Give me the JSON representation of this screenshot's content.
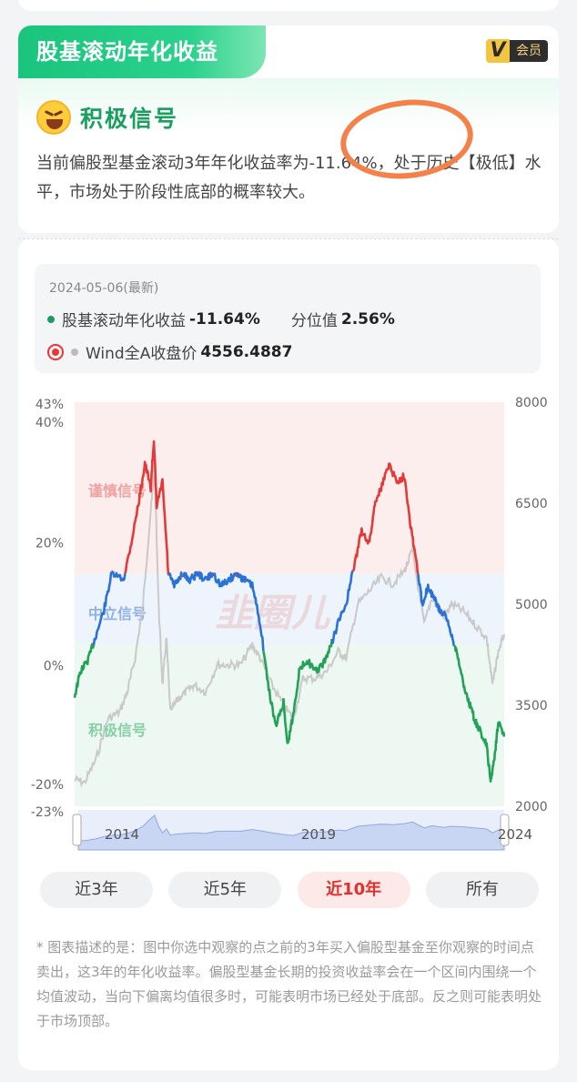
{
  "header": {
    "title": "股基滚动年化收益",
    "vip_letter": "V",
    "vip_label": "会员"
  },
  "signal": {
    "title": "积极信号"
  },
  "description": "当前偏股型基金滚动3年年化收益率为-11.64%，处于历史【极低】水平，市场处于阶段性底部的概率较大。",
  "info": {
    "date": "2024-05-06(最新)",
    "series1_label": "股基滚动年化收益",
    "series1_value": "-11.64%",
    "percentile_label": "分位值",
    "percentile_value": "2.56%",
    "series2_label": "Wind全A收盘价",
    "series2_value": "4556.4887"
  },
  "chart_data": {
    "type": "line",
    "x_range": [
      2013.35,
      2024.35
    ],
    "x_ticks": [
      "2014",
      "2019",
      "2024"
    ],
    "y_left_ticks": [
      "43%",
      "40%",
      "20%",
      "0%",
      "-20%",
      "-23%"
    ],
    "y_left_range": [
      -23,
      43
    ],
    "y_right_ticks": [
      "8000",
      "6500",
      "5000",
      "3500",
      "2000"
    ],
    "y_right_range": [
      2000,
      8000
    ],
    "zones": [
      {
        "name": "谨慎信号",
        "from": 15,
        "to": 43,
        "color": "#fdeeee"
      },
      {
        "name": "中立信号",
        "from": 3.5,
        "to": 15,
        "color": "#eef4fc"
      },
      {
        "name": "积极信号",
        "from": -23,
        "to": 3.5,
        "color": "#ecf8f1"
      }
    ],
    "watermark": "韭圈儿",
    "series": [
      {
        "name": "股基滚动年化收益",
        "axis": "left",
        "colors": {
          "high": "#e23a3a",
          "mid": "#2a72d6",
          "low": "#23a257"
        },
        "x": [
          2013.35,
          2013.5,
          2013.7,
          2013.9,
          2014.1,
          2014.3,
          2014.6,
          2014.8,
          2015.0,
          2015.15,
          2015.3,
          2015.38,
          2015.45,
          2015.6,
          2015.75,
          2015.9,
          2016.1,
          2016.3,
          2016.5,
          2016.7,
          2016.9,
          2017.1,
          2017.3,
          2017.5,
          2017.7,
          2017.9,
          2018.1,
          2018.3,
          2018.5,
          2018.7,
          2018.8,
          2018.95,
          2019.1,
          2019.3,
          2019.5,
          2019.7,
          2019.9,
          2020.1,
          2020.3,
          2020.5,
          2020.7,
          2020.9,
          2021.05,
          2021.2,
          2021.4,
          2021.6,
          2021.8,
          2021.95,
          2022.1,
          2022.25,
          2022.4,
          2022.55,
          2022.7,
          2022.85,
          2023.0,
          2023.15,
          2023.3,
          2023.45,
          2023.6,
          2023.75,
          2023.9,
          2024.0,
          2024.1,
          2024.2,
          2024.35
        ],
        "y": [
          -5,
          -1,
          1,
          5,
          9,
          15,
          14,
          20,
          27,
          33,
          29,
          37,
          26,
          30,
          15,
          13,
          15,
          14,
          15,
          14,
          15,
          13,
          14,
          15,
          14,
          13,
          7,
          -3,
          -10,
          -6,
          -13,
          -8,
          -1,
          1,
          -1,
          0,
          3,
          7,
          10,
          16,
          22,
          20,
          27,
          29,
          33,
          30,
          31,
          23,
          17,
          10,
          13,
          11,
          9,
          8,
          5,
          2,
          -3,
          -6,
          -9,
          -11,
          -13,
          -19,
          -15,
          -9,
          -11.64
        ]
      },
      {
        "name": "Wind全A收盘价",
        "axis": "right",
        "color": "#c9c9c9",
        "x": [
          2013.35,
          2013.6,
          2013.9,
          2014.2,
          2014.5,
          2014.7,
          2014.9,
          2015.1,
          2015.3,
          2015.4,
          2015.5,
          2015.6,
          2015.7,
          2015.8,
          2016.0,
          2016.2,
          2016.4,
          2016.7,
          2017.0,
          2017.3,
          2017.6,
          2017.9,
          2018.1,
          2018.4,
          2018.7,
          2018.95,
          2019.2,
          2019.5,
          2019.8,
          2020.1,
          2020.3,
          2020.6,
          2020.9,
          2021.2,
          2021.5,
          2021.8,
          2022.0,
          2022.3,
          2022.5,
          2022.8,
          2023.0,
          2023.3,
          2023.6,
          2023.9,
          2024.05,
          2024.2,
          2024.35
        ],
        "y": [
          2400,
          2350,
          2700,
          3300,
          3400,
          3700,
          4200,
          5000,
          6400,
          7000,
          5000,
          3800,
          4500,
          3400,
          3600,
          3700,
          3800,
          3700,
          4100,
          4100,
          4100,
          4400,
          4200,
          3800,
          3500,
          3300,
          3900,
          3900,
          4000,
          4300,
          4200,
          5000,
          5200,
          5400,
          5300,
          5500,
          5800,
          4700,
          5100,
          4800,
          5000,
          4900,
          4700,
          4500,
          3800,
          4300,
          4556
        ]
      }
    ]
  },
  "ranges": {
    "r3": "近3年",
    "r5": "近5年",
    "r10": "近10年",
    "all": "所有"
  },
  "note": "* 图表描述的是：图中你选中观察的点之前的3年买入偏股型基金至你观察的时间点卖出，这3年的年化收益率。偏股型基金长期的投资收益率会在一个区间内围绕一个均值波动，当向下偏离均值很多时，可能表明市场已经处于底部。反之则可能表明处于市场顶部。"
}
